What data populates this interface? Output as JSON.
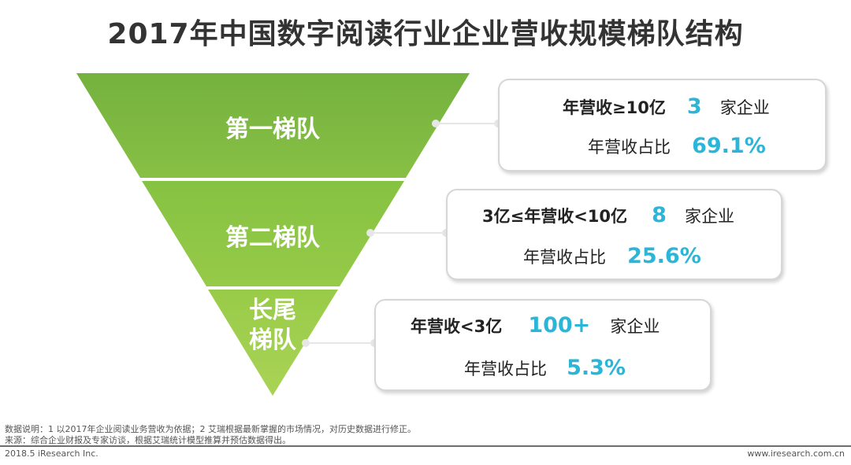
{
  "title": "2017年中国数字阅读行业企业营收规模梯队结构",
  "tiers": [
    {
      "label": "第一梯队",
      "condition": "年营收≥10亿",
      "count": "3",
      "count_unit": "家企业",
      "share_label": "年营收占比",
      "share": "69.1%"
    },
    {
      "label": "第二梯队",
      "condition": "3亿≤年营收<10亿",
      "count": "8",
      "count_unit": "家企业",
      "share_label": "年营收占比",
      "share": "25.6%"
    },
    {
      "label_line1": "长尾",
      "label_line2": "梯队",
      "condition": "年营收<3亿",
      "count": "100+",
      "count_unit": "家企业",
      "share_label": "年营收占比",
      "share": "5.3%"
    }
  ],
  "footer": {
    "note": "数据说明：1 以2017年企业阅读业务营收为依据；2 艾瑞根据最新掌握的市场情况，对历史数据进行修正。",
    "source": "来源：综合企业财报及专家访谈，根据艾瑞统计模型推算并预估数据得出。",
    "copyright": "2018.5 iResearch Inc.",
    "website": "www.iresearch.com.cn"
  },
  "colors": {
    "tier1": "#7cb843",
    "tier2": "#8dc63f",
    "tier3": "#a5d14a",
    "accent": "#2ab5d9"
  }
}
